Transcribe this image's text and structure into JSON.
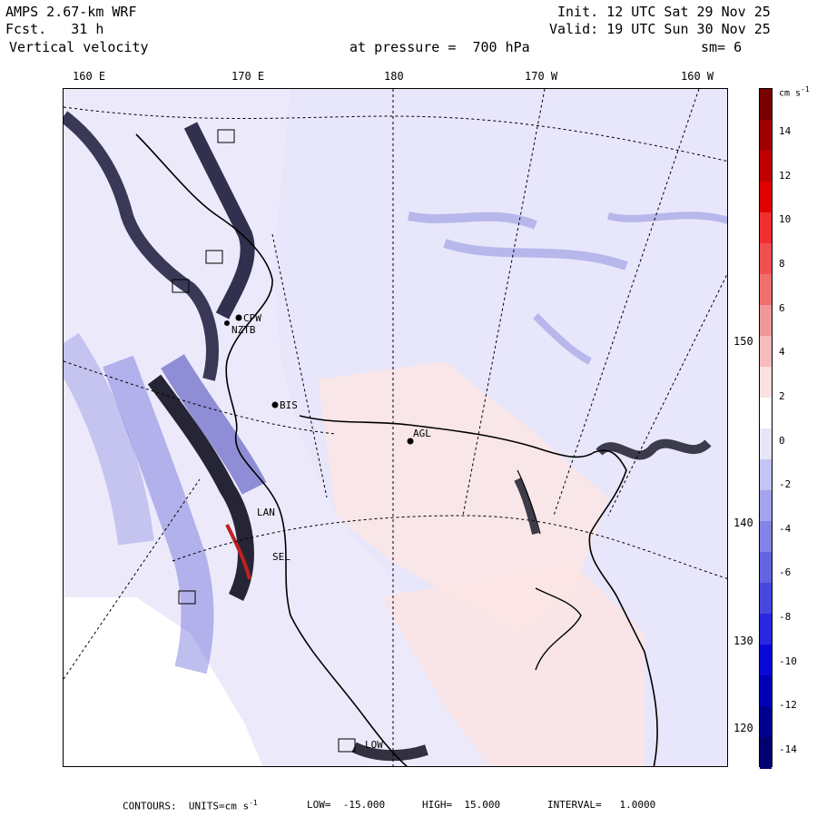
{
  "header": {
    "model": "AMPS 2.67-km WRF",
    "fcst": "Fcst.   31 h",
    "field": "Vertical velocity",
    "init": "Init. 12 UTC Sat 29 Nov 25",
    "valid": "Valid: 19 UTC Sun 30 Nov 25",
    "pressure": "at pressure =  700 hPa",
    "smoothing": "sm= 6"
  },
  "lon_labels": [
    "160 E",
    "170 E",
    "180",
    "170 W",
    "160 W"
  ],
  "lat_labels": [
    "150 W",
    "140 W",
    "130 W",
    "120 W"
  ],
  "stations": [
    "CPW",
    "NZTB",
    "BIS",
    "AGL",
    "LAN",
    "SEL",
    "LOW"
  ],
  "colorbar": {
    "unit": "cm s",
    "unit_exp": "-1",
    "ticks": [
      "14",
      "12",
      "10",
      "8",
      "6",
      "4",
      "2",
      "0",
      "-2",
      "-4",
      "-6",
      "-8",
      "-10",
      "-12",
      "-14"
    ],
    "colors": [
      "#7a0000",
      "#a00000",
      "#c00000",
      "#e00000",
      "#f03030",
      "#f05050",
      "#f07070",
      "#f09898",
      "#f8bcbc",
      "#fce0e0",
      "#ffffff",
      "#e6e6fa",
      "#c4c4f4",
      "#a4a4ee",
      "#8484e8",
      "#6464e0",
      "#4848e0",
      "#2828e0",
      "#0808d8",
      "#0000b4",
      "#000090",
      "#00006e"
    ]
  },
  "footer": {
    "contours": "CONTOURS:  UNITS=cm s",
    "exp": "-1",
    "low": "LOW=  -15.000",
    "high": "HIGH=  15.000",
    "interval": "INTERVAL=   1.0000"
  },
  "colors": {
    "land_shade": "#e6e6fa",
    "ocean_shade": "#fcecec",
    "ice_free": "#ffffff"
  }
}
